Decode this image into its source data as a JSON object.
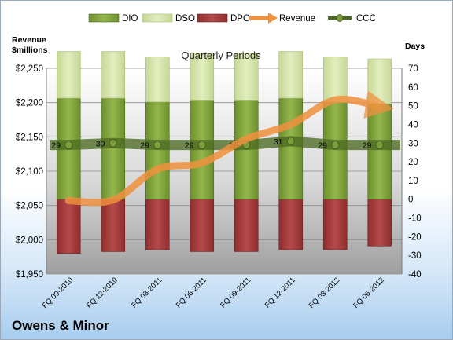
{
  "company": "Owens & Minor",
  "chart_data": {
    "type": "bar",
    "title": "Quarterly Periods",
    "ylabel_left": [
      "Revenue",
      "$millions"
    ],
    "ylabel_right": "Days",
    "categories": [
      "FQ 09-2010",
      "FQ 12-2010",
      "FQ 03-2011",
      "FQ 06-2011",
      "FQ 09-2011",
      "FQ 12-2011",
      "FQ 03-2012",
      "FQ 06-2012"
    ],
    "left_axis": {
      "min": 1950,
      "max": 2250,
      "step": 50,
      "tick_labels": [
        "$1,950",
        "$2,000",
        "$2,050",
        "$2,100",
        "$2,150",
        "$2,200",
        "$2,250"
      ]
    },
    "right_axis": {
      "min": -40,
      "max": 70,
      "step": 10,
      "tick_labels": [
        "-40",
        "-30",
        "-20",
        "-10",
        "0",
        "10",
        "20",
        "30",
        "40",
        "50",
        "60",
        "70"
      ]
    },
    "series": [
      {
        "name": "DIO",
        "axis": "days",
        "color": "#7fa33a",
        "values": [
          54,
          54,
          52,
          53,
          53,
          54,
          52,
          51
        ]
      },
      {
        "name": "DSO",
        "axis": "days",
        "color": "#d6e6a8",
        "values": [
          25,
          25,
          24,
          25,
          25,
          25,
          24,
          24
        ]
      },
      {
        "name": "DPO",
        "axis": "days",
        "color": "#a63a3a",
        "values": [
          -29,
          -28,
          -27,
          -28,
          -28,
          -27,
          -27,
          -25
        ]
      },
      {
        "name": "Revenue",
        "axis": "revenue",
        "color": "#f0913e",
        "values": [
          2057,
          2058,
          2103,
          2112,
          2147,
          2168,
          2204,
          2194
        ]
      },
      {
        "name": "CCC",
        "axis": "days",
        "color": "#5a7a2a",
        "values": [
          29,
          30,
          29,
          29,
          29,
          31,
          29,
          29
        ]
      }
    ],
    "legend_position": "top",
    "grid": true
  }
}
